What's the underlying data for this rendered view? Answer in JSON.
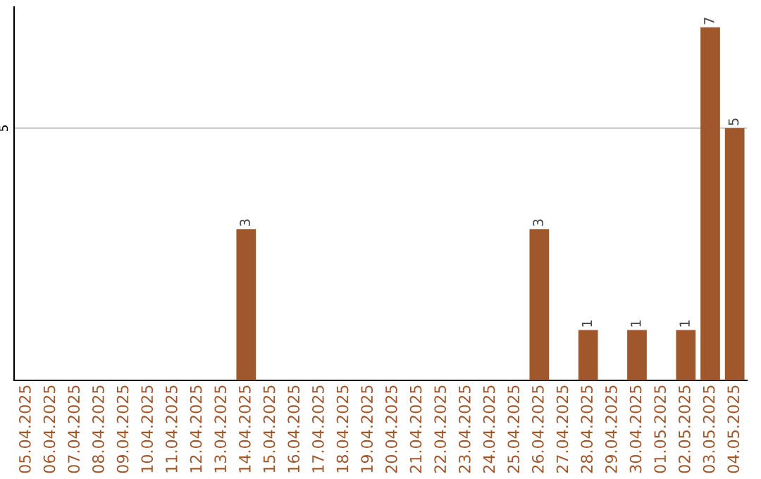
{
  "chart_data": {
    "type": "bar",
    "categories": [
      "05.04.2025",
      "06.04.2025",
      "07.04.2025",
      "08.04.2025",
      "09.04.2025",
      "10.04.2025",
      "11.04.2025",
      "12.04.2025",
      "13.04.2025",
      "14.04.2025",
      "15.04.2025",
      "16.04.2025",
      "17.04.2025",
      "18.04.2025",
      "19.04.2025",
      "20.04.2025",
      "21.04.2025",
      "22.04.2025",
      "23.04.2025",
      "24.04.2025",
      "25.04.2025",
      "26.04.2025",
      "27.04.2025",
      "28.04.2025",
      "29.04.2025",
      "30.04.2025",
      "01.05.2025",
      "02.05.2025",
      "03.05.2025",
      "04.05.2025"
    ],
    "values": [
      0,
      0,
      0,
      0,
      0,
      0,
      0,
      0,
      0,
      3,
      0,
      0,
      0,
      0,
      0,
      0,
      0,
      0,
      0,
      0,
      0,
      3,
      0,
      1,
      0,
      1,
      0,
      1,
      7,
      5
    ],
    "value_labels": [
      null,
      null,
      null,
      null,
      null,
      null,
      null,
      null,
      null,
      "3",
      null,
      null,
      null,
      null,
      null,
      null,
      null,
      null,
      null,
      null,
      null,
      "3",
      null,
      "1",
      null,
      "1",
      null,
      "1",
      "7",
      "5"
    ],
    "color": "#a0572c",
    "ylim": [
      0,
      7.4
    ],
    "yticks": [
      5
    ],
    "grid": "y"
  }
}
